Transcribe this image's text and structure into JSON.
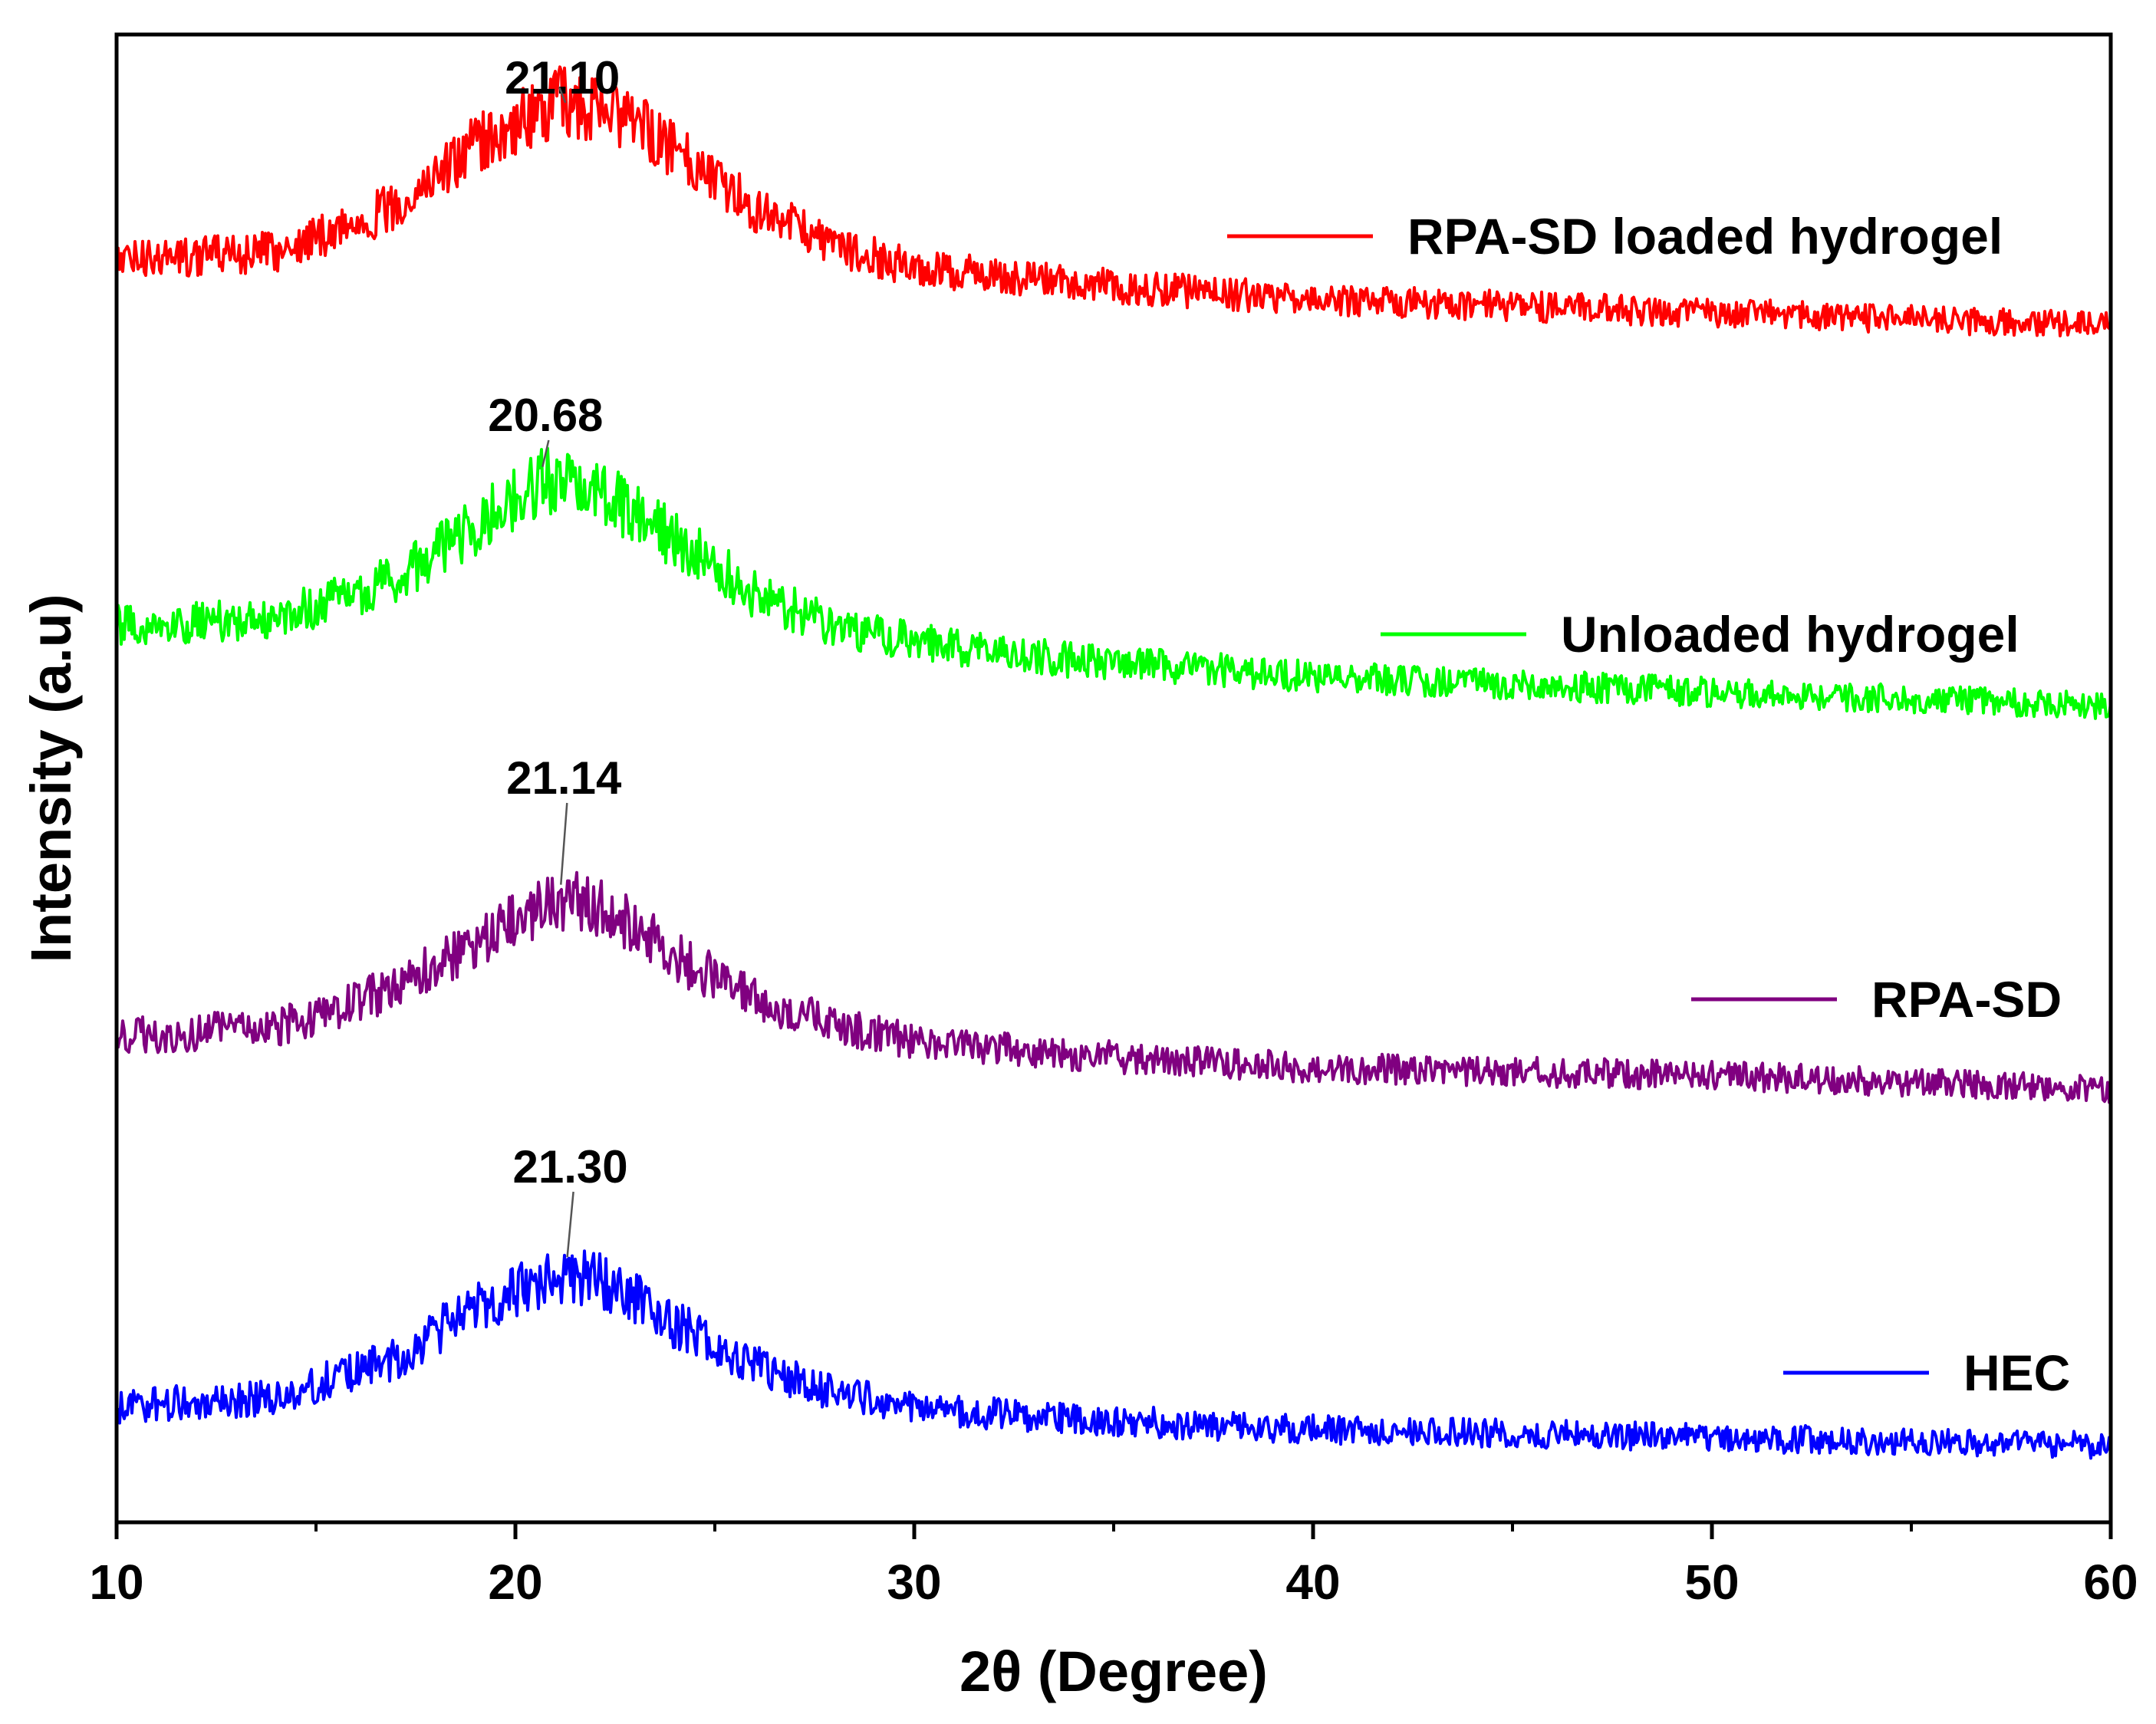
{
  "chart_data": {
    "type": "line",
    "title": "",
    "xlabel": "2θ (Degree)",
    "ylabel": "Intensity (a.u)",
    "xlim": [
      10,
      60
    ],
    "xticks": [
      10,
      20,
      30,
      40,
      50,
      60
    ],
    "xtick_labels": [
      "10",
      "20",
      "30",
      "40",
      "50",
      "60"
    ],
    "grid": false,
    "legend_placement": "right, beside each curve",
    "y_units": "arbitrary (curves vertically offset)",
    "series": [
      {
        "name": "RPA-SD loaded hydrogel",
        "color": "#ff0000",
        "peak_label": "21.10",
        "peak_x": 21.1,
        "offset": 3.0,
        "profile": {
          "x": [
            10,
            14,
            17,
            19,
            20.5,
            21.1,
            22,
            23,
            24.5,
            26,
            28,
            30,
            34,
            40,
            50,
            60
          ],
          "y": [
            0.25,
            0.28,
            0.45,
            0.68,
            0.8,
            0.85,
            0.82,
            0.76,
            0.62,
            0.45,
            0.3,
            0.22,
            0.16,
            0.1,
            0.05,
            0.0
          ]
        }
      },
      {
        "name": "Unloaded hydrogel",
        "color": "#00ff00",
        "peak_label": "20.68",
        "peak_x": 20.68,
        "offset": 2.0,
        "profile": {
          "x": [
            10,
            14,
            17,
            19,
            20.68,
            22,
            23,
            24.5,
            26,
            28,
            30,
            34,
            40,
            50,
            60
          ],
          "y": [
            0.3,
            0.33,
            0.48,
            0.68,
            0.85,
            0.82,
            0.72,
            0.58,
            0.42,
            0.3,
            0.24,
            0.17,
            0.11,
            0.05,
            0.0
          ]
        }
      },
      {
        "name": "RPA-SD",
        "color": "#800080",
        "peak_label": "21.14",
        "peak_x": 21.14,
        "offset": 1.0,
        "profile": {
          "x": [
            10,
            14,
            17,
            19,
            21.14,
            22.5,
            24,
            26,
            28,
            30,
            34,
            40,
            50,
            60
          ],
          "y": [
            0.2,
            0.23,
            0.38,
            0.55,
            0.72,
            0.66,
            0.5,
            0.34,
            0.24,
            0.18,
            0.13,
            0.08,
            0.05,
            0.0
          ]
        }
      },
      {
        "name": "HEC",
        "color": "#0000ff",
        "peak_label": "21.30",
        "peak_x": 21.3,
        "offset": 0.0,
        "profile": {
          "x": [
            10,
            14,
            17,
            19,
            21.3,
            22.5,
            24,
            26,
            28,
            30,
            34,
            40,
            50,
            60
          ],
          "y": [
            0.15,
            0.18,
            0.33,
            0.52,
            0.66,
            0.6,
            0.46,
            0.3,
            0.2,
            0.14,
            0.1,
            0.06,
            0.03,
            0.0
          ]
        }
      }
    ]
  }
}
